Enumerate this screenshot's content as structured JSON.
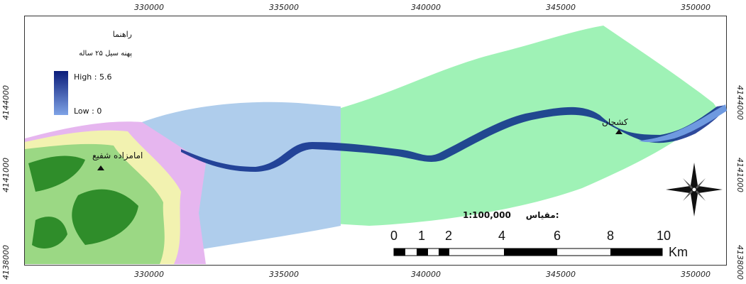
{
  "axes": {
    "x_ticks": [
      "330000",
      "335000",
      "340000",
      "345000",
      "350000"
    ],
    "y_ticks": [
      "4144000",
      "4141000",
      "4138000"
    ]
  },
  "legend": {
    "title": "راهنما",
    "subtitle": "پهنه سیل ۲۵ ساله",
    "high_label": "High : 5.6",
    "low_label": "Low : 0",
    "high_color": "#0a1c7a",
    "low_color": "#7fa3e6"
  },
  "places": {
    "west": "امامزاده شفیع",
    "east": "کشجان"
  },
  "scale": {
    "label": "مقیاس:",
    "ratio": "1:100,000",
    "numbers": [
      "0",
      "1",
      "2",
      "4",
      "6",
      "8",
      "10"
    ],
    "unit": "Km"
  },
  "colors": {
    "plain_green": "#9ff2b6",
    "plain_blue": "#afcdec",
    "mountain_pink": "#e6b6ef",
    "mountain_light": "#f2f2b0",
    "mountain_mid": "#9bd884",
    "mountain_dark": "#2f8d2a",
    "flood_dark": "#0b2a8a",
    "flood_light": "#6f9ae0"
  },
  "icons": [
    "north-arrow-icon",
    "place-triangle-icon"
  ]
}
